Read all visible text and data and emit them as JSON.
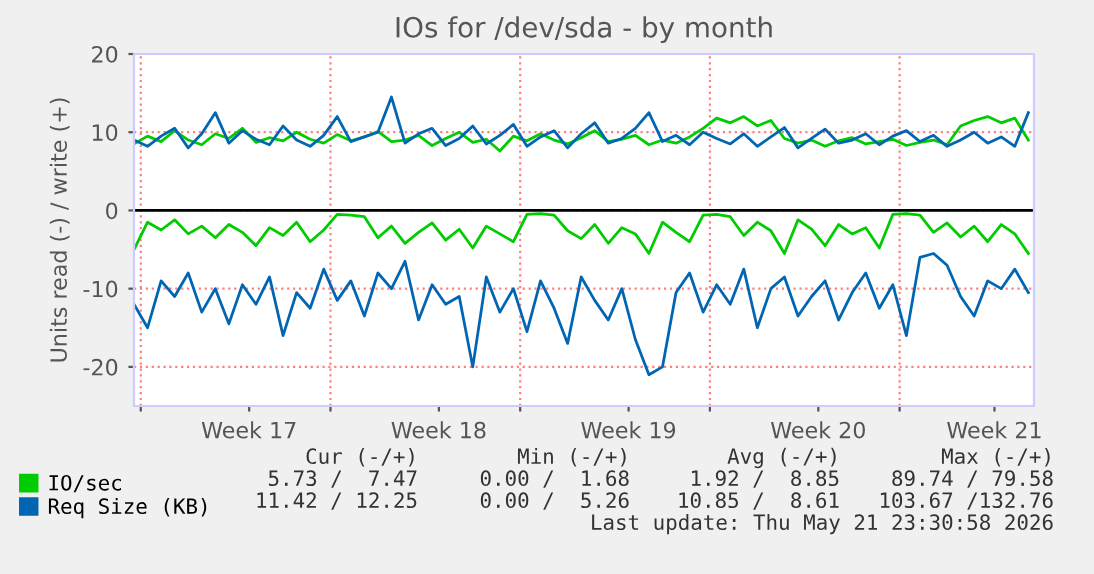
{
  "chart_data": {
    "type": "line",
    "title": "IOs for /dev/sda - by month",
    "ylabel": "Units read (-) / write (+)",
    "x": [
      "2026-04-18T18:00",
      "2026-04-19T06:00",
      "2026-04-19T18:00",
      "2026-04-20T06:00",
      "2026-04-20T18:00",
      "2026-04-21T06:00",
      "2026-04-21T18:00",
      "2026-04-22T06:00",
      "2026-04-22T18:00",
      "2026-04-23T06:00",
      "2026-04-23T18:00",
      "2026-04-24T06:00",
      "2026-04-24T18:00",
      "2026-04-25T06:00",
      "2026-04-25T18:00",
      "2026-04-26T06:00",
      "2026-04-26T18:00",
      "2026-04-27T06:00",
      "2026-04-27T18:00",
      "2026-04-28T06:00",
      "2026-04-28T18:00",
      "2026-04-29T06:00",
      "2026-04-29T18:00",
      "2026-04-30T06:00",
      "2026-04-30T18:00",
      "2026-05-01T06:00",
      "2026-05-01T18:00",
      "2026-05-02T06:00",
      "2026-05-02T18:00",
      "2026-05-03T06:00",
      "2026-05-03T18:00",
      "2026-05-04T06:00",
      "2026-05-04T18:00",
      "2026-05-05T06:00",
      "2026-05-05T18:00",
      "2026-05-06T06:00",
      "2026-05-06T18:00",
      "2026-05-07T06:00",
      "2026-05-07T18:00",
      "2026-05-08T06:00",
      "2026-05-08T18:00",
      "2026-05-09T06:00",
      "2026-05-09T18:00",
      "2026-05-10T06:00",
      "2026-05-10T18:00",
      "2026-05-11T06:00",
      "2026-05-11T18:00",
      "2026-05-12T06:00",
      "2026-05-12T18:00",
      "2026-05-13T06:00",
      "2026-05-13T18:00",
      "2026-05-14T06:00",
      "2026-05-14T18:00",
      "2026-05-15T06:00",
      "2026-05-15T18:00",
      "2026-05-16T06:00",
      "2026-05-16T18:00",
      "2026-05-17T06:00",
      "2026-05-17T18:00",
      "2026-05-18T06:00",
      "2026-05-18T18:00",
      "2026-05-19T06:00",
      "2026-05-19T18:00",
      "2026-05-20T06:00",
      "2026-05-20T18:00",
      "2026-05-21T06:00",
      "2026-05-21T18:00"
    ],
    "series": [
      {
        "name": "IO/sec",
        "color": "#00cc00",
        "values": [
          8.5,
          9.5,
          8.8,
          10.2,
          9.0,
          8.4,
          9.8,
          9.2,
          10.5,
          8.7,
          9.3,
          8.9,
          10.0,
          9.1,
          8.6,
          9.7,
          8.9,
          9.4,
          10.1,
          8.8,
          9.0,
          9.6,
          8.3,
          9.2,
          10.0,
          8.7,
          9.1,
          7.6,
          9.5,
          8.9,
          9.8,
          9.0,
          8.5,
          9.3,
          10.2,
          8.8,
          9.1,
          9.6,
          8.4,
          9.0,
          8.6,
          9.4,
          10.5,
          11.8,
          11.2,
          12.0,
          10.8,
          11.5,
          9.2,
          8.6,
          9.0,
          8.2,
          8.9,
          9.3,
          8.5,
          8.8,
          9.1,
          8.3,
          8.7,
          9.0,
          8.4,
          10.8,
          11.5,
          12.0,
          11.2,
          11.8,
          9.0
        ]
      },
      {
        "color": "#00cc00",
        "values": [
          -5.0,
          -1.5,
          -2.5,
          -1.2,
          -3.0,
          -2.0,
          -3.5,
          -1.8,
          -2.8,
          -4.5,
          -2.2,
          -3.2,
          -1.5,
          -4.0,
          -2.5,
          -0.5,
          -0.6,
          -0.8,
          -3.5,
          -2.0,
          -4.2,
          -2.8,
          -1.6,
          -3.8,
          -2.4,
          -4.8,
          -2.0,
          -3.0,
          -4.0,
          -0.5,
          -0.4,
          -0.6,
          -2.6,
          -3.6,
          -1.8,
          -4.2,
          -2.2,
          -3.0,
          -5.5,
          -1.5,
          -2.8,
          -4.0,
          -0.6,
          -0.5,
          -0.8,
          -3.2,
          -1.5,
          -2.6,
          -5.5,
          -1.2,
          -2.4,
          -4.5,
          -1.8,
          -3.0,
          -2.2,
          -4.8,
          -0.5,
          -0.4,
          -0.6,
          -2.8,
          -1.6,
          -3.4,
          -2.0,
          -4.0,
          -1.8,
          -3.0,
          -5.5
        ]
      },
      {
        "name": "Req Size (KB)",
        "color": "#0066b3",
        "values": [
          9.0,
          8.2,
          9.5,
          10.5,
          8.0,
          9.8,
          12.5,
          8.6,
          10.2,
          9.1,
          8.4,
          10.8,
          9.0,
          8.2,
          9.6,
          12.0,
          8.8,
          9.4,
          10.0,
          14.5,
          8.6,
          9.8,
          10.5,
          8.3,
          9.2,
          10.8,
          8.5,
          9.6,
          11.0,
          8.2,
          9.4,
          10.2,
          8.0,
          9.8,
          11.2,
          8.6,
          9.2,
          10.5,
          12.5,
          8.8,
          9.6,
          8.4,
          10.0,
          9.2,
          8.5,
          9.8,
          8.2,
          9.4,
          10.6,
          8.0,
          9.2,
          10.4,
          8.6,
          9.0,
          9.8,
          8.4,
          9.5,
          10.2,
          8.8,
          9.6,
          8.2,
          9.0,
          10.0,
          8.6,
          9.4,
          8.2,
          12.5
        ]
      },
      {
        "color": "#0066b3",
        "values": [
          -12.0,
          -15.0,
          -9.0,
          -11.0,
          -8.0,
          -13.0,
          -10.0,
          -14.5,
          -9.5,
          -12.0,
          -8.5,
          -16.0,
          -10.5,
          -12.5,
          -7.5,
          -11.5,
          -9.0,
          -13.5,
          -8.0,
          -10.0,
          -6.5,
          -14.0,
          -9.5,
          -12.0,
          -11.0,
          -20.0,
          -8.5,
          -13.0,
          -10.0,
          -15.5,
          -9.0,
          -12.5,
          -17.0,
          -8.5,
          -11.5,
          -14.0,
          -10.0,
          -16.5,
          -21.0,
          -20.0,
          -10.5,
          -8.0,
          -13.0,
          -9.5,
          -12.0,
          -7.5,
          -15.0,
          -10.0,
          -8.5,
          -13.5,
          -11.0,
          -9.0,
          -14.0,
          -10.5,
          -8.0,
          -12.5,
          -9.5,
          -16.0,
          -6.0,
          -5.5,
          -7.0,
          -11.0,
          -13.5,
          -9.0,
          -10.0,
          -7.5,
          -10.5
        ]
      }
    ],
    "xlim": [
      "2026-04-18T18:00",
      "2026-05-21T23:00"
    ],
    "xticks": [
      {
        "value": "2026-04-19",
        "label": null
      },
      {
        "value": "2026-04-26",
        "label": null
      },
      {
        "value": "2026-05-03",
        "label": null
      },
      {
        "value": "2026-05-10",
        "label": null
      },
      {
        "value": "2026-05-17",
        "label": null
      },
      {
        "value": "2026-04-23",
        "label": "Week 17"
      },
      {
        "value": "2026-04-30",
        "label": "Week 18"
      },
      {
        "value": "2026-05-07",
        "label": "Week 19"
      },
      {
        "value": "2026-05-14",
        "label": "Week 20"
      },
      {
        "value": "2026-05-20T12:00",
        "label": "Week 21"
      }
    ],
    "ylim": [
      -25,
      20
    ],
    "yticks": [
      -20,
      -10,
      0,
      10,
      20
    ],
    "ref_lines": [
      {
        "axis": "y",
        "value": 0,
        "color": "#000000"
      }
    ],
    "grid": true,
    "legend": "bottom",
    "line_style": "solid",
    "marker": "none",
    "annotations": [
      "Cur (-/+)",
      "Min (-/+)",
      "Avg (-/+)",
      "Max (-/+)",
      "5.73 /  7.47",
      "0.00 /  1.68",
      "1.92 /  8.85",
      "89.74 / 79.58",
      "11.42 / 12.25",
      "0.00 /  5.26",
      "10.85 /  8.61",
      "103.67 /132.76",
      "Last update: Thu May 21 23:30:58 2026"
    ]
  }
}
